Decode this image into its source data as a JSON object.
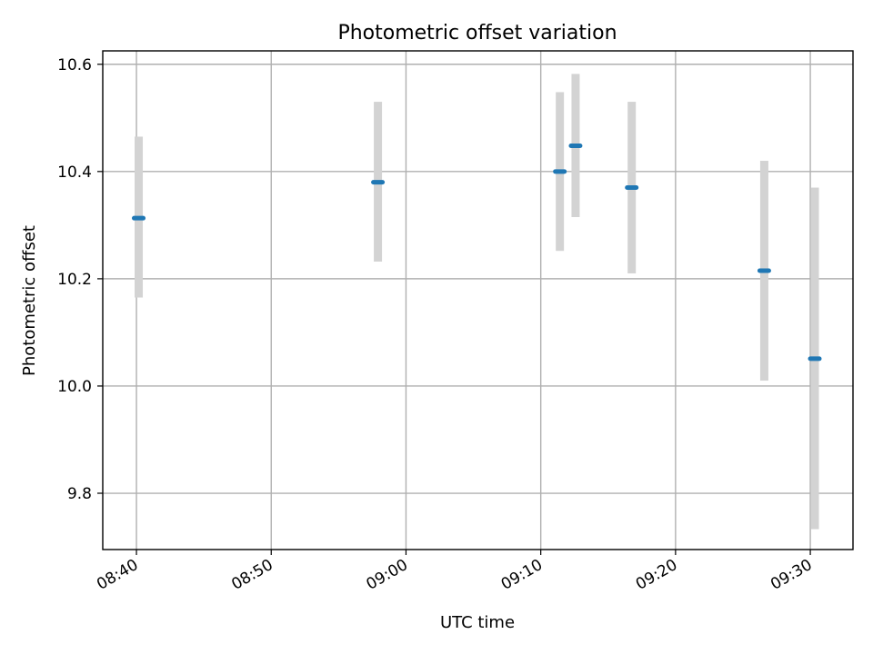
{
  "chart_data": {
    "type": "scatter",
    "title": "Photometric offset variation",
    "xlabel": "UTC time",
    "ylabel": "Photometric offset",
    "xlim": [
      "08:37:30",
      "09:33:10"
    ],
    "ylim": [
      9.695,
      10.625
    ],
    "xticks": [
      "08:40",
      "08:50",
      "09:00",
      "09:10",
      "09:20",
      "09:30"
    ],
    "yticks": [
      9.8,
      10.0,
      10.2,
      10.4,
      10.6
    ],
    "ytick_labels": [
      "9.8",
      "10.0",
      "10.2",
      "10.4",
      "10.6"
    ],
    "grid": true,
    "points": [
      {
        "x": "08:40:10",
        "y": 10.313,
        "err_low": 10.165,
        "err_high": 10.465
      },
      {
        "x": "08:57:55",
        "y": 10.38,
        "err_low": 10.232,
        "err_high": 10.53
      },
      {
        "x": "09:11:25",
        "y": 10.4,
        "err_low": 10.252,
        "err_high": 10.548
      },
      {
        "x": "09:12:35",
        "y": 10.448,
        "err_low": 10.315,
        "err_high": 10.582
      },
      {
        "x": "09:16:45",
        "y": 10.37,
        "err_low": 10.21,
        "err_high": 10.53
      },
      {
        "x": "09:26:35",
        "y": 10.215,
        "err_low": 10.01,
        "err_high": 10.42
      },
      {
        "x": "09:30:20",
        "y": 10.051,
        "err_low": 9.733,
        "err_high": 10.37
      }
    ],
    "colors": {
      "marker": "#1f77b4",
      "errorbar": "#d3d3d3"
    }
  }
}
